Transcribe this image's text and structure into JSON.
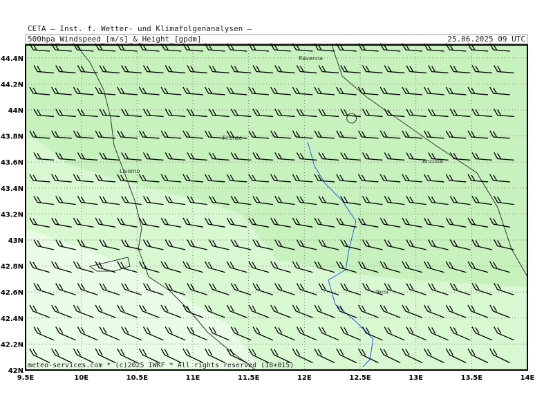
{
  "header": {
    "line1": "CETA — Inst. f. Wetter- und Klimafolgenanalysen —",
    "product": "500hpa_Windspeed_[m/s]_&_Height_[gpdm]",
    "date": "25.06.2025 09 UTC"
  },
  "map": {
    "lonlim": [
      9.5,
      14
    ],
    "latlim": [
      42,
      44.5
    ],
    "lat_ticks": [
      {
        "value": 42,
        "label": "42N"
      },
      {
        "value": 42.2,
        "label": "42.2N"
      },
      {
        "value": 42.4,
        "label": "42.4N"
      },
      {
        "value": 42.6,
        "label": "42.6N"
      },
      {
        "value": 42.8,
        "label": "42.8N"
      },
      {
        "value": 43,
        "label": "43N"
      },
      {
        "value": 43.2,
        "label": "43.2N"
      },
      {
        "value": 43.4,
        "label": "43.4N"
      },
      {
        "value": 43.6,
        "label": "43.6N"
      },
      {
        "value": 43.8,
        "label": "43.8N"
      },
      {
        "value": 44,
        "label": "44N"
      },
      {
        "value": 44.2,
        "label": "44.2N"
      },
      {
        "value": 44.4,
        "label": "44.4N"
      }
    ],
    "lon_ticks": [
      {
        "value": 9.5,
        "label": "9.5E"
      },
      {
        "value": 10,
        "label": "10E"
      },
      {
        "value": 10.5,
        "label": "10.5E"
      },
      {
        "value": 11,
        "label": "11E"
      },
      {
        "value": 11.5,
        "label": "11.5E"
      },
      {
        "value": 12,
        "label": "12E"
      },
      {
        "value": 12.5,
        "label": "12.5E"
      },
      {
        "value": 13,
        "label": "13E"
      },
      {
        "value": 13.5,
        "label": "13.5E"
      },
      {
        "value": 14,
        "label": "14E"
      }
    ],
    "places": [
      "Ravenna",
      "Firenze",
      "Livorno",
      "Ancona",
      "Terni"
    ]
  },
  "footer": "meteo-services.com * (c)2025 IWKF * All rights reserved (18+015)"
}
